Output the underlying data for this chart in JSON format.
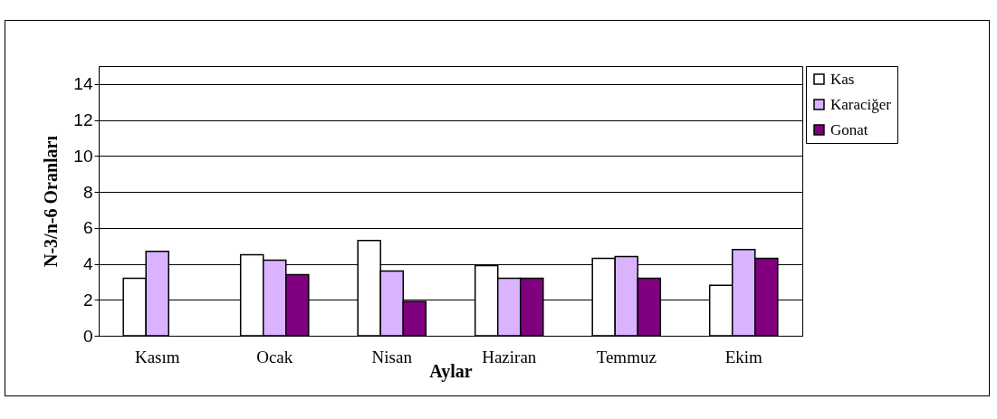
{
  "chart_data": {
    "type": "bar",
    "xlabel": "Aylar",
    "ylabel": "N-3/n-6 Oranları",
    "categories": [
      "Kasım",
      "Ocak",
      "Nisan",
      "Haziran",
      "Temmuz",
      "Ekim"
    ],
    "series": [
      {
        "name": "Kas",
        "color": "#ffffff",
        "values": [
          3.2,
          4.5,
          5.3,
          3.9,
          4.3,
          2.8
        ]
      },
      {
        "name": "Karaciğer",
        "color": "#d9b3ff",
        "values": [
          4.7,
          4.2,
          3.6,
          3.2,
          4.4,
          4.8
        ]
      },
      {
        "name": "Gonat",
        "color": "#800080",
        "values": [
          null,
          3.4,
          1.9,
          3.2,
          3.2,
          4.3
        ]
      }
    ],
    "ylim": [
      0,
      15
    ],
    "yticks": [
      0,
      2,
      4,
      6,
      8,
      10,
      12,
      14
    ],
    "grid": "y",
    "legend": "right"
  }
}
